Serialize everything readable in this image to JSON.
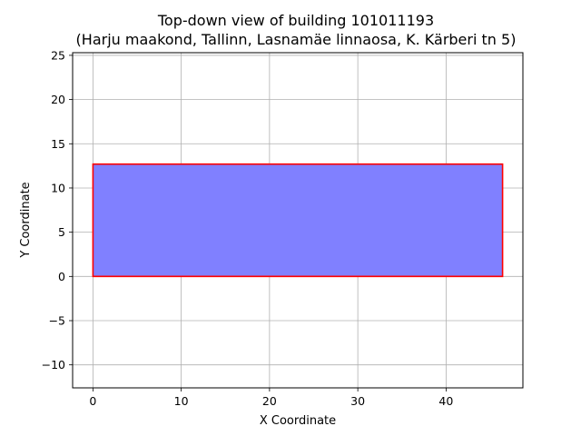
{
  "chart_data": {
    "type": "polygon",
    "title": "Top-down view of building 101011193",
    "subtitle": "(Harju maakond, Tallinn, Lasnamäe linnaosa, K. Kärberi tn 5)",
    "xlabel": "X Coordinate",
    "ylabel": "Y Coordinate",
    "xlim": [
      -2.3,
      48.7
    ],
    "ylim": [
      -12.6,
      25.3
    ],
    "xticks": [
      0,
      10,
      20,
      30,
      40
    ],
    "yticks": [
      -10,
      -5,
      0,
      5,
      10,
      15,
      20,
      25
    ],
    "grid": true,
    "polygon": {
      "points": [
        [
          0,
          0
        ],
        [
          46.4,
          0
        ],
        [
          46.4,
          12.7
        ],
        [
          0,
          12.7
        ]
      ],
      "fill_color": "#8080ff",
      "edge_color": "#ff0000"
    }
  }
}
